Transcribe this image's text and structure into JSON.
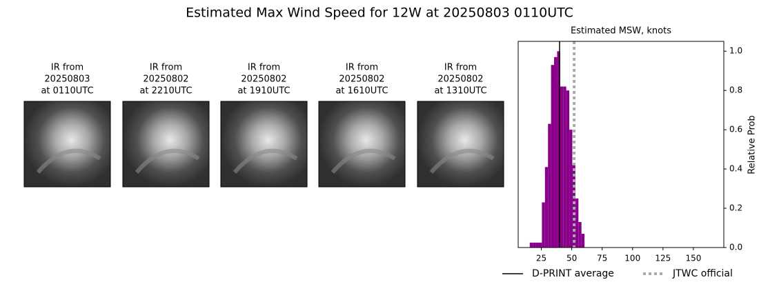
{
  "chart_data": {
    "type": "histogram",
    "title": "Estimated Max Wind Speed for 12W at 20250803 0110UTC",
    "subtitle": "Estimated MSW, knots",
    "y_label": "Relative Prob",
    "color": "#8b008b",
    "bins": [
      15.5,
      18,
      20.5,
      23,
      25.5,
      28,
      30.5,
      33,
      35.5,
      38,
      40.5,
      43,
      45.5,
      48,
      50.5,
      53,
      55.5,
      58,
      60.5
    ],
    "values": [
      0.025,
      0.025,
      0.025,
      0.025,
      0.23,
      0.41,
      0.63,
      0.93,
      0.97,
      1.0,
      0.82,
      0.82,
      0.8,
      0.6,
      0.42,
      0.25,
      0.13,
      0.07
    ],
    "xlim": [
      6,
      175
    ],
    "xticks": [
      25,
      50,
      75,
      100,
      125,
      150
    ],
    "ylim": [
      0,
      1.05
    ],
    "yticks": [
      {
        "value": 0,
        "label": "0.0"
      },
      0.2,
      0.4,
      0.6,
      0.8,
      {
        "value": 1,
        "label": "1.0"
      }
    ],
    "lines": [
      {
        "name": "D-PRINT average",
        "value": 40,
        "color": "#000000",
        "style": "solid"
      },
      {
        "name": "JTWC official",
        "value": 52,
        "color": "#aaaaaa",
        "style": "dotted"
      }
    ]
  },
  "panels": [
    {
      "lines": [
        "IR from",
        "20250803",
        "at 0110UTC"
      ]
    },
    {
      "lines": [
        "IR from",
        "20250802",
        "at 2210UTC"
      ]
    },
    {
      "lines": [
        "IR from",
        "20250802",
        "at 1910UTC"
      ]
    },
    {
      "lines": [
        "IR from",
        "20250802",
        "at 1610UTC"
      ]
    },
    {
      "lines": [
        "IR from",
        "20250802",
        "at 1310UTC"
      ]
    }
  ]
}
